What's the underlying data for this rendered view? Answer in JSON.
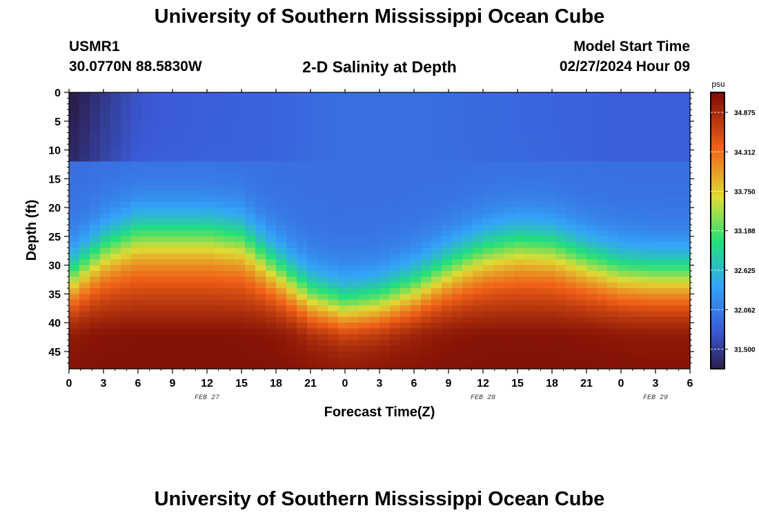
{
  "header": {
    "title": "University of Southern Mississippi Ocean Cube",
    "station_id": "USMR1",
    "coordinates": "30.0770N  88.5830W",
    "subtitle": "2-D Salinity at Depth",
    "model_start_label": "Model Start Time",
    "model_start_value": "02/27/2024 Hour 09"
  },
  "footer": {
    "title": "University of Southern Mississippi Ocean Cube"
  },
  "chart_data": {
    "type": "heatmap",
    "title": "2-D Salinity at Depth",
    "xlabel": "Forecast Time(Z)",
    "ylabel": "Depth (ft)",
    "x_ticks": [
      "0",
      "3",
      "6",
      "9",
      "12",
      "15",
      "18",
      "21",
      "0",
      "3",
      "6",
      "9",
      "12",
      "15",
      "18",
      "21",
      "0",
      "3",
      "6"
    ],
    "x_range_hours": [
      0,
      54
    ],
    "y_ticks": [
      "0",
      "5",
      "10",
      "15",
      "20",
      "25",
      "30",
      "35",
      "40",
      "45"
    ],
    "y_range_ft": [
      0,
      48
    ],
    "date_labels": [
      {
        "text": "FEB 27",
        "hour": 12
      },
      {
        "text": "FEB 28",
        "hour": 36
      },
      {
        "text": "FEB 29",
        "hour": 51
      }
    ],
    "colorbar": {
      "unit": "psu",
      "tick_labels": [
        "34.875",
        "34.312",
        "33.750",
        "33.188",
        "32.625",
        "32.062",
        "31.500"
      ],
      "range": [
        31.22,
        35.16
      ]
    },
    "halocline_depth_profile": {
      "hours": [
        0,
        3,
        6,
        9,
        12,
        15,
        18,
        21,
        24,
        27,
        30,
        33,
        36,
        39,
        42,
        45,
        48,
        51,
        54
      ],
      "depth_ft": [
        32,
        26.5,
        23.5,
        23.5,
        23.5,
        24.5,
        30,
        35,
        37,
        36,
        33.5,
        30,
        27,
        25.5,
        26,
        28.5,
        30.5,
        31,
        31
      ]
    },
    "surface_salinity_psu": {
      "hours": [
        0,
        3,
        6,
        12,
        18,
        24,
        30,
        36,
        42,
        48,
        54
      ],
      "values": [
        31.3,
        31.55,
        31.75,
        31.8,
        31.85,
        31.95,
        31.95,
        31.9,
        31.85,
        31.8,
        31.8
      ]
    },
    "bottom_salinity_psu": 35.1,
    "colors": {
      "min": "#2b1d4d",
      "low": "#3b5bd8",
      "mid_low": "#33a4f8",
      "mid": "#23e07a",
      "mid_high": "#e0dc34",
      "high": "#f06018",
      "max": "#7a0b04"
    }
  }
}
